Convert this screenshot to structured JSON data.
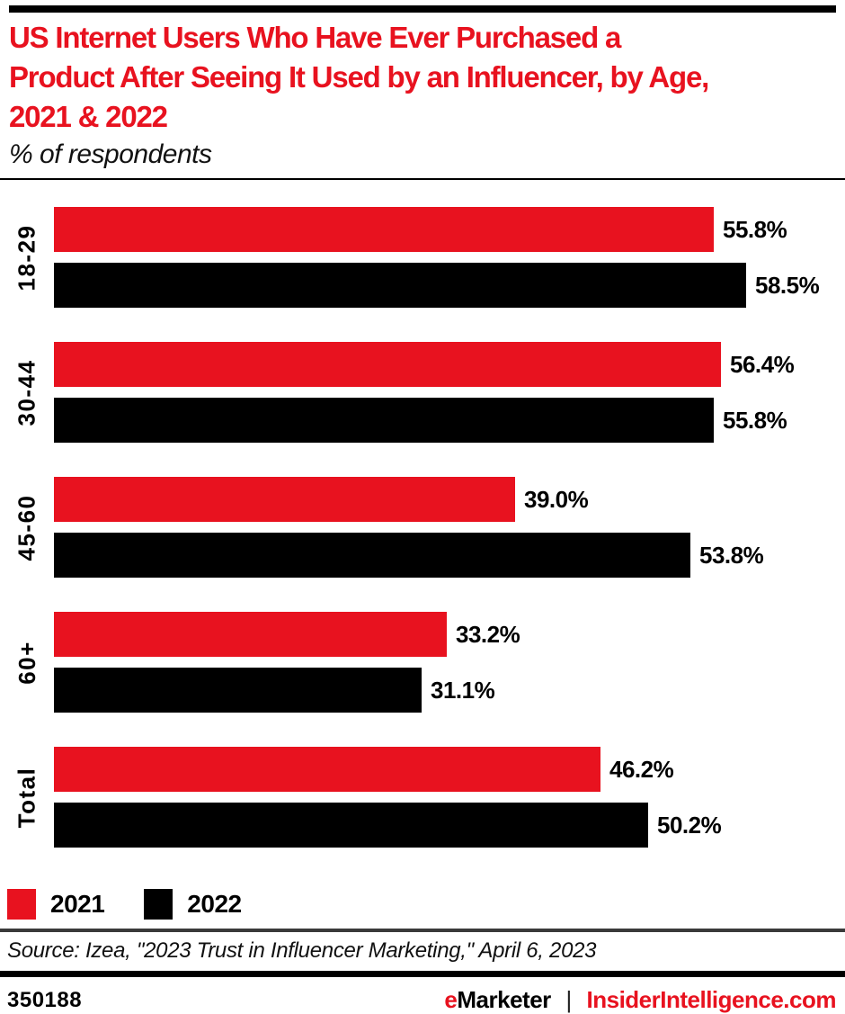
{
  "colors": {
    "accent_red": "#e8121f",
    "bar_black": "#000000",
    "divider_gray": "#3a3a3a"
  },
  "header": {
    "title_lines": [
      "US Internet Users Who Have Ever Purchased a",
      "Product After Seeing It Used by an Influencer, by Age,",
      "2021 & 2022"
    ],
    "subtitle": "% of respondents"
  },
  "chart_data": {
    "type": "bar",
    "orientation": "horizontal",
    "title": "US Internet Users Who Have Ever Purchased a Product After Seeing It Used by an Influencer, by Age, 2021 & 2022",
    "subtitle": "% of respondents",
    "categories": [
      "18-29",
      "30-44",
      "45-60",
      "60+",
      "Total"
    ],
    "series": [
      {
        "name": "2021",
        "color": "#e8121f",
        "values": [
          55.8,
          56.4,
          39.0,
          33.2,
          46.2
        ]
      },
      {
        "name": "2022",
        "color": "#000000",
        "values": [
          58.5,
          55.8,
          53.8,
          31.1,
          50.2
        ]
      }
    ],
    "value_suffix": "%",
    "value_label_decimals": 1,
    "xlim": [
      0,
      62
    ],
    "grid": false,
    "legend_position": "bottom-left"
  },
  "legend": {
    "items": [
      {
        "label": "2021",
        "color": "#e8121f"
      },
      {
        "label": "2022",
        "color": "#000000"
      }
    ]
  },
  "source": {
    "text": "Source: Izea, \"2023 Trust in Influencer Marketing,\" April 6, 2023"
  },
  "footer": {
    "chart_id": "350188",
    "brand": {
      "prefix": "e",
      "name": "Marketer",
      "separator": "|",
      "site": "InsiderIntelligence.com"
    }
  }
}
